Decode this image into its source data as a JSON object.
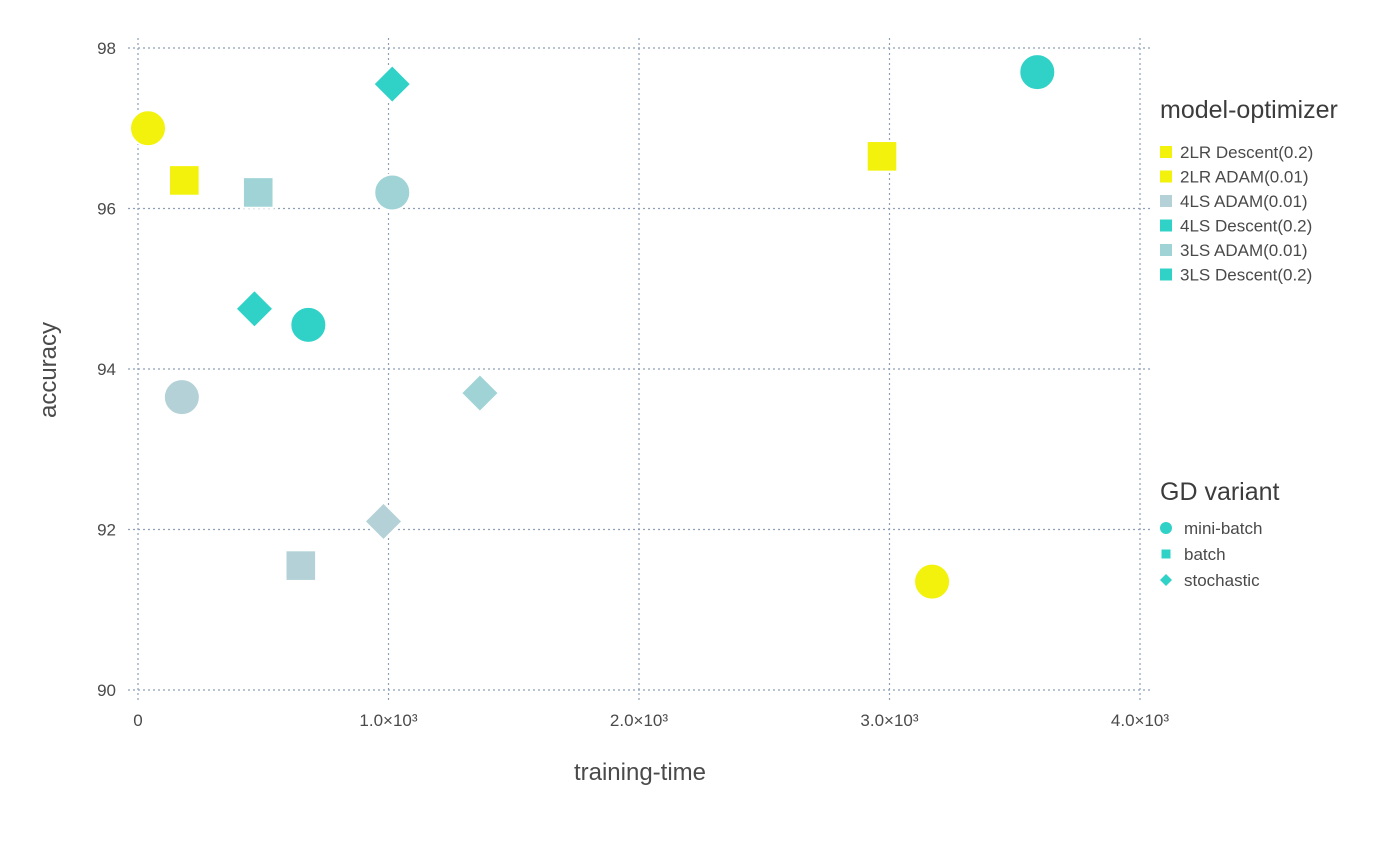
{
  "chart_data": {
    "type": "scatter",
    "xlabel": "training-time",
    "ylabel": "accuracy",
    "xlim": [
      0,
      4000
    ],
    "ylim": [
      90,
      98
    ],
    "x_ticks": [
      0,
      1000,
      2000,
      3000,
      4000
    ],
    "x_tick_labels": [
      "0",
      "1.0×10³",
      "2.0×10³",
      "3.0×10³",
      "4.0×10³"
    ],
    "y_ticks": [
      90,
      92,
      94,
      96,
      98
    ],
    "y_tick_labels": [
      "90",
      "92",
      "94",
      "96",
      "98"
    ],
    "grid": true,
    "legend_color": {
      "title": "model-optimizer",
      "placement": "right",
      "entries": [
        {
          "label": "2LR Descent(0.2)",
          "color": "#f2f20d"
        },
        {
          "label": "2LR ADAM(0.01)",
          "color": "#f2f20d"
        },
        {
          "label": "4LS ADAM(0.01)",
          "color": "#b3d1d6"
        },
        {
          "label": "4LS Descent(0.2)",
          "color": "#30d2c8"
        },
        {
          "label": "3LS ADAM(0.01)",
          "color": "#9fd3d6"
        },
        {
          "label": "3LS Descent(0.2)",
          "color": "#30d2c8"
        }
      ]
    },
    "legend_shape": {
      "title": "GD variant",
      "placement": "right",
      "color": "#30d2c8",
      "entries": [
        {
          "label": "mini-batch",
          "shape": "circle"
        },
        {
          "label": "batch",
          "shape": "square"
        },
        {
          "label": "stochastic",
          "shape": "diamond"
        }
      ]
    },
    "points": [
      {
        "x": 40,
        "y": 97.0,
        "series": "2LR Descent(0.2)",
        "variant": "mini-batch",
        "color": "#f2f20d"
      },
      {
        "x": 185,
        "y": 96.35,
        "series": "2LR Descent(0.2)",
        "variant": "batch",
        "color": "#f2f20d"
      },
      {
        "x": 2970,
        "y": 96.65,
        "series": "2LR ADAM(0.01)",
        "variant": "batch",
        "color": "#f2f20d"
      },
      {
        "x": 3170,
        "y": 91.35,
        "series": "2LR ADAM(0.01)",
        "variant": "mini-batch",
        "color": "#f2f20d"
      },
      {
        "x": 3590,
        "y": 97.7,
        "series": "4LS Descent(0.2)",
        "variant": "mini-batch",
        "color": "#30d2c8"
      },
      {
        "x": 1015,
        "y": 97.55,
        "series": "4LS Descent(0.2)",
        "variant": "stochastic",
        "color": "#30d2c8"
      },
      {
        "x": 465,
        "y": 94.75,
        "series": "3LS Descent(0.2)",
        "variant": "stochastic",
        "color": "#30d2c8"
      },
      {
        "x": 680,
        "y": 94.55,
        "series": "3LS Descent(0.2)",
        "variant": "mini-batch",
        "color": "#30d2c8"
      },
      {
        "x": 480,
        "y": 96.2,
        "series": "3LS ADAM(0.01)",
        "variant": "batch",
        "color": "#9fd3d6"
      },
      {
        "x": 1015,
        "y": 96.2,
        "series": "3LS ADAM(0.01)",
        "variant": "mini-batch",
        "color": "#9fd3d6"
      },
      {
        "x": 1365,
        "y": 93.7,
        "series": "3LS ADAM(0.01)",
        "variant": "stochastic",
        "color": "#9fd3d6"
      },
      {
        "x": 175,
        "y": 93.65,
        "series": "4LS ADAM(0.01)",
        "variant": "mini-batch",
        "color": "#b3d1d6"
      },
      {
        "x": 980,
        "y": 92.1,
        "series": "4LS ADAM(0.01)",
        "variant": "stochastic",
        "color": "#b3d1d6"
      },
      {
        "x": 650,
        "y": 91.55,
        "series": "4LS ADAM(0.01)",
        "variant": "batch",
        "color": "#b3d1d6"
      }
    ]
  }
}
